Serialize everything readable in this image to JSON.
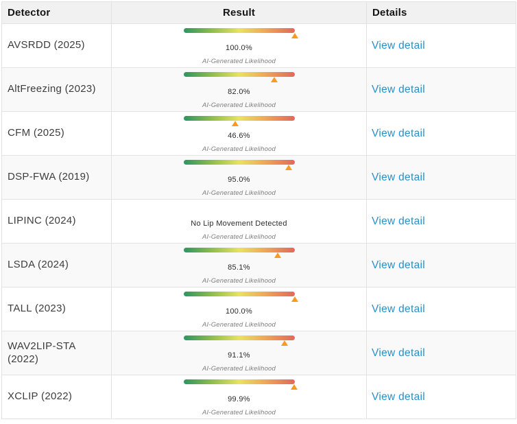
{
  "table": {
    "columns": [
      {
        "label": "Detector"
      },
      {
        "label": "Result"
      },
      {
        "label": "Details"
      }
    ],
    "caption": "AI-Generated Likelihood",
    "link_label": "View detail",
    "rows": [
      {
        "detector": "AVSRDD (2025)",
        "value": "100.0%",
        "pct": 100,
        "has_bar": true
      },
      {
        "detector": "AltFreezing (2023)",
        "value": "82.0%",
        "pct": 82,
        "has_bar": true
      },
      {
        "detector": "CFM (2025)",
        "value": "46.6%",
        "pct": 46.6,
        "has_bar": true
      },
      {
        "detector": "DSP-FWA (2019)",
        "value": "95.0%",
        "pct": 95,
        "has_bar": true
      },
      {
        "detector": "LIPINC (2024)",
        "value": "No Lip Movement Detected",
        "pct": null,
        "has_bar": false
      },
      {
        "detector": "LSDA (2024)",
        "value": "85.1%",
        "pct": 85.1,
        "has_bar": true
      },
      {
        "detector": "TALL (2023)",
        "value": "100.0%",
        "pct": 100,
        "has_bar": true
      },
      {
        "detector": "WAV2LIP-STA (2022)",
        "value": "91.1%",
        "pct": 91.1,
        "has_bar": true
      },
      {
        "detector": "XCLIP (2022)",
        "value": "99.9%",
        "pct": 99.9,
        "has_bar": true
      }
    ],
    "colors": {
      "gradient": [
        "#2e9463",
        "#8ebc4f",
        "#e9e35e",
        "#eca35b",
        "#e1685d"
      ],
      "marker": "#fb9a1e",
      "link": "#2591c6",
      "header_bg": "#f1f1f1",
      "row_alt_bg": "#f9f9f9",
      "border": "#e2e2e2"
    }
  }
}
